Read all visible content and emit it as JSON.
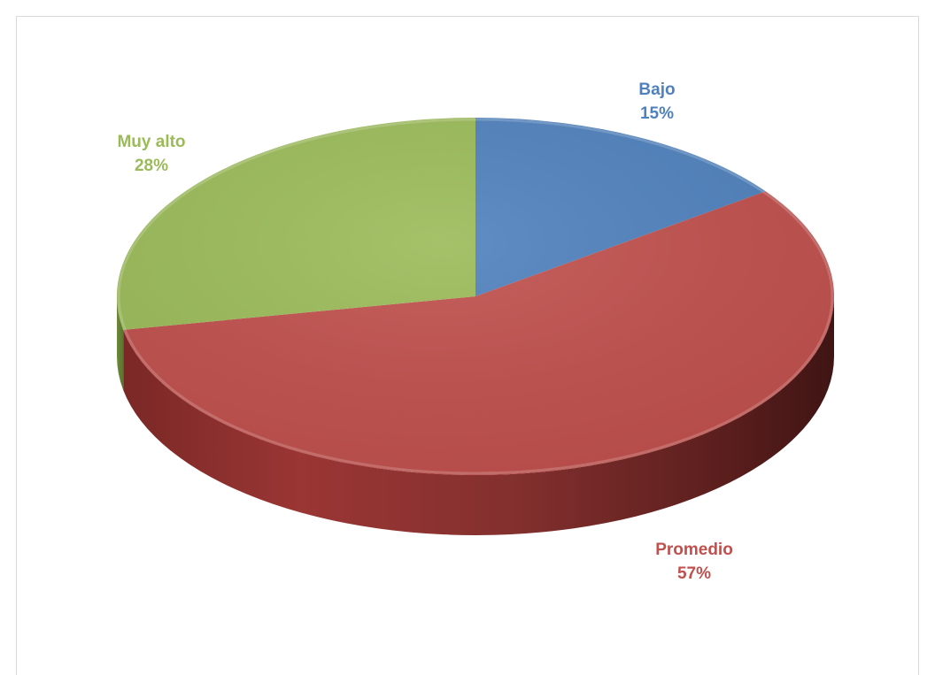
{
  "chart_data": {
    "type": "pie",
    "style": "3d",
    "title": "",
    "categories": [
      "Bajo",
      "Promedio",
      "Muy alto"
    ],
    "values": [
      15,
      57,
      28
    ],
    "percent_labels": [
      "15%",
      "57%",
      "28%"
    ],
    "colors": [
      "#4f81bd",
      "#c0504d",
      "#9bbb59"
    ],
    "legend": "none",
    "data_labels": "category and percent"
  }
}
